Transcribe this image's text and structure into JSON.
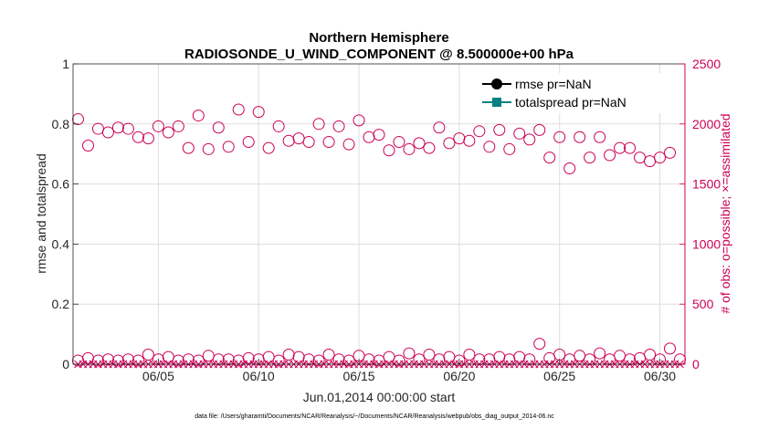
{
  "chart_data": {
    "type": "scatter",
    "title": "Northern Hemisphere",
    "subtitle": "RADIOSONDE_U_WIND_COMPONENT @ 8.500000e+00 hPa",
    "xlabel": "Jun.01,2014 00:00:00 start",
    "ylabel": "rmse and totalspread",
    "ylabel_right": "# of obs: o=possible; ×=assimilated",
    "footnote": "data file: /Users/gharamti/Documents/NCAR/Reanalysis/~/Documents/NCAR/Reanalysis/webpub/obs_diag_output_2014-06.nc",
    "xlim": [
      0.75,
      31.25
    ],
    "ylim": [
      0,
      1
    ],
    "ylim_right": [
      0,
      2500
    ],
    "x_ticks": [
      5,
      10,
      15,
      20,
      25,
      30
    ],
    "x_tick_labels": [
      "06/05",
      "06/10",
      "06/15",
      "06/20",
      "06/25",
      "06/30"
    ],
    "y_ticks": [
      0,
      0.2,
      0.4,
      0.6,
      0.8,
      1
    ],
    "y_tick_labels": [
      "0",
      "0.2",
      "0.4",
      "0.6",
      "0.8",
      "1"
    ],
    "y_right_ticks": [
      0,
      500,
      1000,
      1500,
      2000,
      2500
    ],
    "y_right_tick_labels": [
      "0",
      "500",
      "1000",
      "1500",
      "2000",
      "2500"
    ],
    "legend": {
      "position": "top-right",
      "entries": [
        "rmse pr=NaN",
        "totalspread pr=NaN"
      ]
    },
    "colors": {
      "rmse": "#000000",
      "totalspread": "#008080",
      "obs": "#cc0055"
    },
    "series": [
      {
        "name": "possible (upper)",
        "marker": "open-circle",
        "axis": "right",
        "x": [
          1,
          1.5,
          2,
          2.5,
          3,
          3.5,
          4,
          4.5,
          5,
          5.5,
          6,
          6.5,
          7,
          7.5,
          8,
          8.5,
          9,
          9.5,
          10,
          10.5,
          11,
          11.5,
          12,
          12.5,
          13,
          13.5,
          14,
          14.5,
          15,
          15.5,
          16,
          16.5,
          17,
          17.5,
          18,
          18.5,
          19,
          19.5,
          20,
          20.5,
          21,
          21.5,
          22,
          22.5,
          23,
          23.5,
          24,
          24.5,
          25,
          25.5,
          26,
          26.5,
          27,
          27.5,
          28,
          28.5,
          29,
          29.5,
          30,
          30.5
        ],
        "values": [
          2040,
          1820,
          1960,
          1930,
          1970,
          1960,
          1890,
          1880,
          1980,
          1930,
          1980,
          1800,
          2070,
          1790,
          1970,
          1810,
          2120,
          1850,
          2100,
          1800,
          1980,
          1860,
          1880,
          1850,
          2000,
          1850,
          1980,
          1830,
          2030,
          1890,
          1910,
          1780,
          1850,
          1790,
          1840,
          1800,
          1970,
          1840,
          1880,
          1860,
          1940,
          1810,
          1950,
          1790,
          1920,
          1870,
          1950,
          1720,
          1890,
          1630,
          1890,
          1720,
          1890,
          1740,
          1800,
          1800,
          1720,
          1690,
          1720,
          1760
        ]
      },
      {
        "name": "possible (lower)",
        "marker": "open-circle",
        "axis": "right",
        "x": [
          1,
          1.5,
          2,
          2.5,
          3,
          3.5,
          4,
          4.5,
          5,
          5.5,
          6,
          6.5,
          7,
          7.5,
          8,
          8.5,
          9,
          9.5,
          10,
          10.5,
          11,
          11.5,
          12,
          12.5,
          13,
          13.5,
          14,
          14.5,
          15,
          15.5,
          16,
          16.5,
          17,
          17.5,
          18,
          18.5,
          19,
          19.5,
          20,
          20.5,
          21,
          21.5,
          22,
          22.5,
          23,
          23.5,
          24,
          24.5,
          25,
          25.5,
          26,
          26.5,
          27,
          27.5,
          28,
          28.5,
          29,
          29.5,
          30,
          30.5,
          31
        ],
        "values": [
          30,
          50,
          30,
          40,
          30,
          40,
          30,
          80,
          40,
          60,
          30,
          40,
          30,
          70,
          40,
          40,
          30,
          50,
          40,
          60,
          30,
          80,
          60,
          40,
          30,
          80,
          40,
          30,
          70,
          40,
          30,
          60,
          30,
          90,
          40,
          80,
          40,
          60,
          30,
          80,
          40,
          40,
          60,
          40,
          60,
          40,
          170,
          50,
          80,
          40,
          70,
          40,
          90,
          40,
          70,
          40,
          50,
          80,
          40,
          130,
          40
        ]
      },
      {
        "name": "assimilated",
        "marker": "x",
        "axis": "right",
        "x": [
          1,
          1.25,
          1.5,
          1.75,
          2,
          2.25,
          2.5,
          2.75,
          3,
          3.25,
          3.5,
          3.75,
          4,
          4.25,
          4.5,
          4.75,
          5,
          5.25,
          5.5,
          5.75,
          6,
          6.25,
          6.5,
          6.75,
          7,
          7.25,
          7.5,
          7.75,
          8,
          8.25,
          8.5,
          8.75,
          9,
          9.25,
          9.5,
          9.75,
          10,
          10.25,
          10.5,
          10.75,
          11,
          11.25,
          11.5,
          11.75,
          12,
          12.25,
          12.5,
          12.75,
          13,
          13.25,
          13.5,
          13.75,
          14,
          14.25,
          14.5,
          14.75,
          15,
          15.25,
          15.5,
          15.75,
          16,
          16.25,
          16.5,
          16.75,
          17,
          17.25,
          17.5,
          17.75,
          18,
          18.25,
          18.5,
          18.75,
          19,
          19.25,
          19.5,
          19.75,
          20,
          20.25,
          20.5,
          20.75,
          21,
          21.25,
          21.5,
          21.75,
          22,
          22.25,
          22.5,
          22.75,
          23,
          23.25,
          23.5,
          23.75,
          24,
          24.25,
          24.5,
          24.75,
          25,
          25.25,
          25.5,
          25.75,
          26,
          26.25,
          26.5,
          26.75,
          27,
          27.25,
          27.5,
          27.75,
          28,
          28.25,
          28.5,
          28.75,
          29,
          29.25,
          29.5,
          29.75,
          30,
          30.25,
          30.5,
          30.75,
          31
        ],
        "values": [
          0,
          0,
          0,
          0,
          0,
          0,
          0,
          0,
          0,
          0,
          0,
          0,
          0,
          0,
          0,
          0,
          0,
          0,
          0,
          0,
          0,
          0,
          0,
          0,
          0,
          0,
          0,
          0,
          0,
          0,
          0,
          0,
          0,
          0,
          0,
          0,
          0,
          0,
          0,
          0,
          0,
          0,
          0,
          0,
          0,
          0,
          0,
          0,
          0,
          0,
          0,
          0,
          0,
          0,
          0,
          0,
          0,
          0,
          0,
          0,
          0,
          0,
          0,
          0,
          0,
          0,
          0,
          0,
          0,
          0,
          0,
          0,
          0,
          0,
          0,
          0,
          0,
          0,
          0,
          0,
          0,
          0,
          0,
          0,
          0,
          0,
          0,
          0,
          0,
          0,
          0,
          0,
          0,
          0,
          0,
          0,
          0,
          0,
          0,
          0,
          0,
          0,
          0,
          0,
          0,
          0,
          0,
          0,
          0,
          0,
          0,
          0,
          0,
          0,
          0,
          0,
          0,
          0,
          0,
          0,
          0
        ]
      }
    ]
  }
}
